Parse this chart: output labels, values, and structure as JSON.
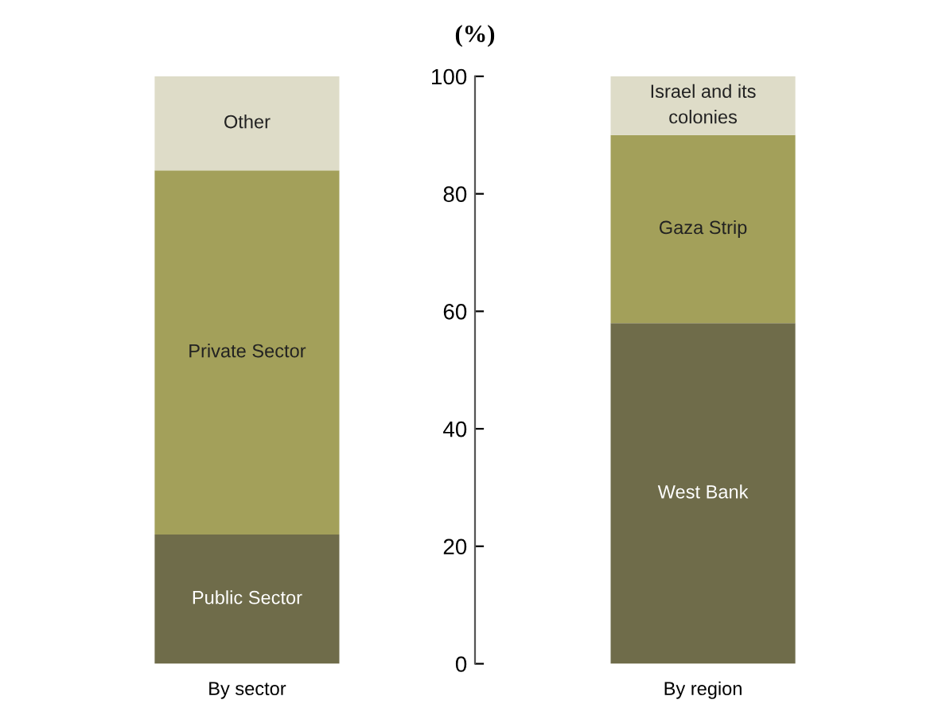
{
  "chart_data": {
    "type": "bar",
    "stacked": true,
    "ylabel": "(%)",
    "categories": [
      "By sector",
      "By region"
    ],
    "series": [
      {
        "color": "#6f6c4a",
        "values": [
          22,
          58
        ],
        "value_labels": [
          "Public Sector",
          "West Bank"
        ]
      },
      {
        "color": "#a3a05a",
        "values": [
          62,
          32
        ],
        "value_labels": [
          "Private Sector",
          "Gaza Strip"
        ]
      },
      {
        "color": "#dedcc8",
        "values": [
          16,
          10
        ],
        "value_labels": [
          "Other",
          "Israel and its\ncolonies"
        ]
      }
    ],
    "ylim": [
      0,
      100
    ],
    "yticks": [
      0,
      20,
      40,
      60,
      80,
      100
    ],
    "grid": false,
    "legend": false
  }
}
